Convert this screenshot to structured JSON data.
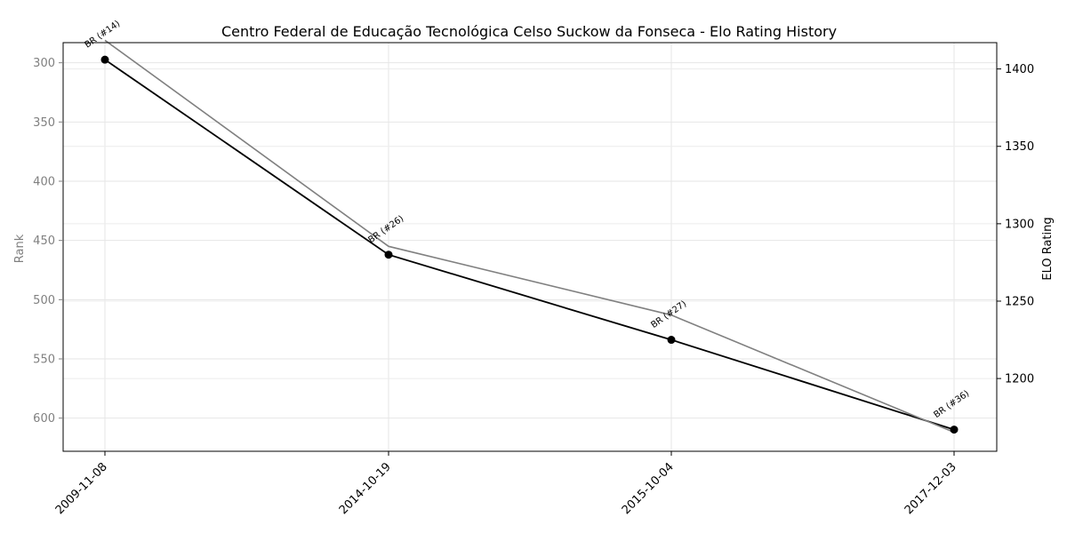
{
  "chart_data": {
    "type": "line",
    "title": "Centro Federal de Educação Tecnológica Celso Suckow da Fonseca - Elo Rating History",
    "x": [
      "2009-11-08",
      "2014-10-19",
      "2015-10-04",
      "2017-12-03"
    ],
    "left_axis": {
      "label": "Rank",
      "inverted": true,
      "ylim": [
        283,
        628
      ],
      "ticks": [
        300,
        350,
        400,
        450,
        500,
        550,
        600
      ],
      "color": "#808080"
    },
    "right_axis": {
      "label": "ELO Rating",
      "ylim": [
        1153,
        1417
      ],
      "ticks": [
        1200,
        1250,
        1300,
        1350,
        1400
      ],
      "color": "#000000"
    },
    "series": [
      {
        "axis": "right",
        "values": [
          1406,
          1280,
          1225,
          1167
        ],
        "color": "#000000",
        "marker": "circle"
      },
      {
        "axis": "left",
        "values": [
          281,
          455,
          513,
          612
        ],
        "color": "#808080",
        "marker": "none"
      }
    ],
    "annotations": [
      "BR (#14)",
      "BR (#26)",
      "BR (#27)",
      "BR (#36)"
    ],
    "grid": true
  }
}
